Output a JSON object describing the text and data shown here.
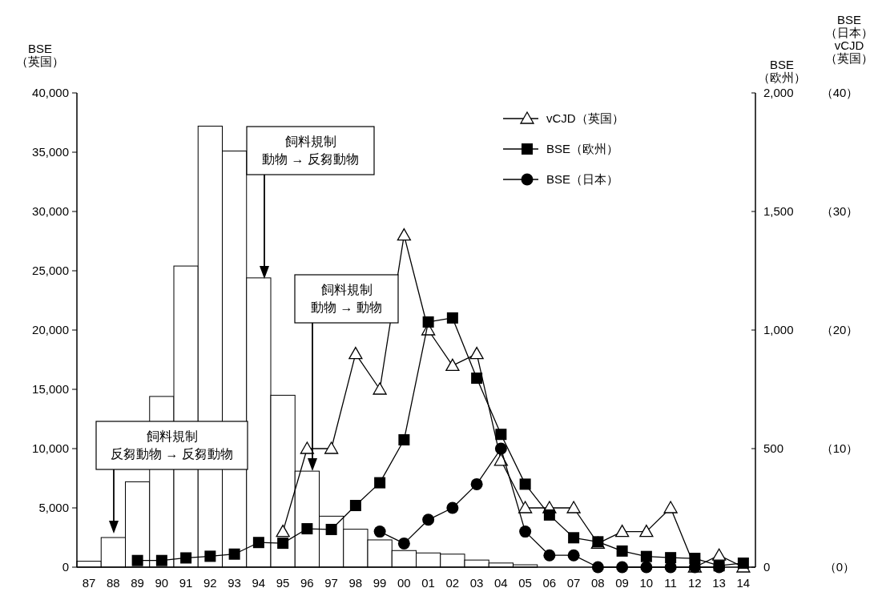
{
  "chart_data": {
    "type": "bar",
    "categories": [
      "87",
      "88",
      "89",
      "90",
      "91",
      "92",
      "93",
      "94",
      "95",
      "96",
      "97",
      "98",
      "99",
      "00",
      "01",
      "02",
      "03",
      "04",
      "05",
      "06",
      "07",
      "08",
      "09",
      "10",
      "11",
      "12",
      "13",
      "14"
    ],
    "ylabel": "BSE\n（英国）",
    "y2label": "BSE\n（欧州）",
    "y3label": "BSE\n（日本）\nvCJD\n（英国）",
    "ylim": [
      0,
      40000
    ],
    "yticks": [
      0,
      {
        "value": 5000,
        "label": "5,000"
      },
      {
        "value": 10000,
        "label": "10,000"
      },
      {
        "value": 15000,
        "label": "15,000"
      },
      {
        "value": 20000,
        "label": "20,000"
      },
      {
        "value": 25000,
        "label": "25,000"
      },
      {
        "value": 30000,
        "label": "30,000"
      },
      {
        "value": 35000,
        "label": "35,000"
      },
      {
        "value": 40000,
        "label": "40,000"
      }
    ],
    "y2lim": [
      0,
      2000
    ],
    "y2ticks": [
      0,
      500,
      {
        "value": 1000,
        "label": "1,000"
      },
      {
        "value": 1500,
        "label": "1,500"
      },
      {
        "value": 2000,
        "label": "2,000"
      }
    ],
    "y3lim": [
      0,
      40
    ],
    "y3ticks": [
      {
        "value": 0,
        "label": "（0）"
      },
      {
        "value": 10,
        "label": "（10）"
      },
      {
        "value": 20,
        "label": "（20）"
      },
      {
        "value": 30,
        "label": "（30）"
      },
      {
        "value": 40,
        "label": "（40）"
      }
    ],
    "legend": "top right",
    "grid": false,
    "series": [
      {
        "color": "#ffffff",
        "values": [
          500,
          2500,
          7200,
          14400,
          25400,
          37200,
          35100,
          24400,
          14500,
          8100,
          4300,
          3200,
          2300,
          1400,
          1200,
          1100,
          600,
          350,
          200,
          null,
          null,
          null,
          null,
          null,
          null,
          null,
          null,
          null
        ]
      },
      {
        "type": "line",
        "name": "vCJD（英国）",
        "axis": "y3",
        "color": "#000000",
        "marker": "triangle",
        "values": [
          null,
          null,
          null,
          null,
          null,
          null,
          null,
          null,
          3,
          10,
          10,
          18,
          15,
          28,
          20,
          17,
          18,
          9,
          5,
          5,
          5,
          2,
          3,
          3,
          5,
          0,
          1,
          0
        ]
      },
      {
        "type": "line",
        "name": "BSE（欧州）",
        "axis": "y2",
        "color": "#000000",
        "marker": "square",
        "values": [
          null,
          null,
          28,
          28,
          39,
          46,
          55,
          104,
          101,
          162,
          159,
          260,
          356,
          537,
          1034,
          1051,
          797,
          560,
          350,
          220,
          124,
          107,
          68,
          45,
          40,
          37,
          6,
          17
        ]
      },
      {
        "type": "line",
        "name": "BSE（日本）",
        "axis": "y3",
        "color": "#000000",
        "marker": "circle",
        "values": [
          null,
          null,
          null,
          null,
          null,
          null,
          null,
          null,
          null,
          null,
          null,
          null,
          3,
          2,
          4,
          5,
          7,
          10,
          3,
          1,
          1,
          0,
          0,
          0,
          0,
          0,
          0,
          null
        ]
      }
    ],
    "annotations": [
      "飼料規制反芻動物 → 反芻動物",
      "飼料規制動物 → 反芻動物",
      "飼料規制動物 → 動物"
    ]
  }
}
